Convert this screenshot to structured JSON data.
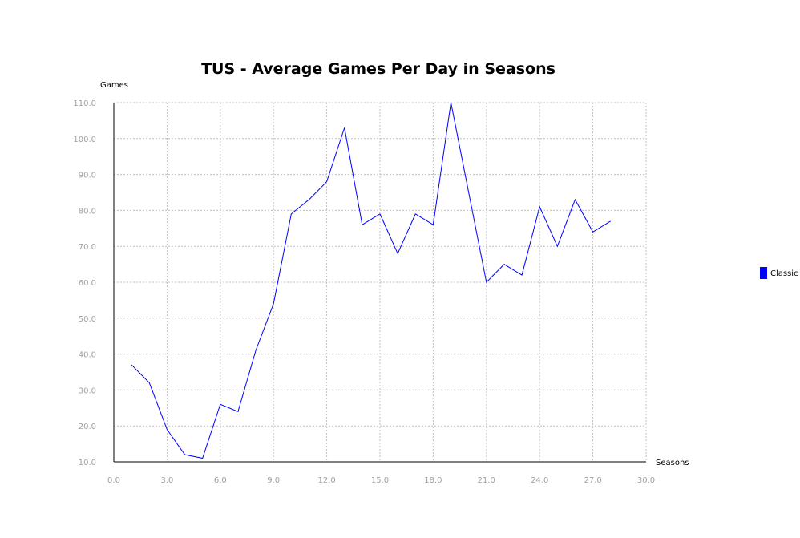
{
  "chart_data": {
    "type": "line",
    "title": "TUS - Average Games Per Day in Seasons",
    "xlabel": "Seasons",
    "ylabel": "Games",
    "xlim": [
      0,
      30
    ],
    "ylim": [
      10,
      110
    ],
    "x_ticks": [
      "0.0",
      "3.0",
      "6.0",
      "9.0",
      "12.0",
      "15.0",
      "18.0",
      "21.0",
      "24.0",
      "27.0",
      "30.0"
    ],
    "y_ticks": [
      "10.0",
      "20.0",
      "30.0",
      "40.0",
      "50.0",
      "60.0",
      "70.0",
      "80.0",
      "90.0",
      "100.0",
      "110.0"
    ],
    "grid": true,
    "legend_position": "right",
    "series": [
      {
        "name": "Classic",
        "color": "#0000ff",
        "x": [
          1,
          2,
          3,
          4,
          5,
          6,
          7,
          8,
          9,
          10,
          11,
          12,
          13,
          14,
          15,
          16,
          17,
          18,
          19,
          20,
          21,
          22,
          23,
          24,
          25,
          26,
          27,
          28
        ],
        "y": [
          37,
          32,
          19,
          12,
          11,
          26,
          24,
          41,
          54,
          79,
          83,
          88,
          103,
          76,
          79,
          68,
          79,
          76,
          110,
          85,
          60,
          65,
          62,
          81,
          70,
          83,
          74,
          77
        ]
      }
    ]
  }
}
